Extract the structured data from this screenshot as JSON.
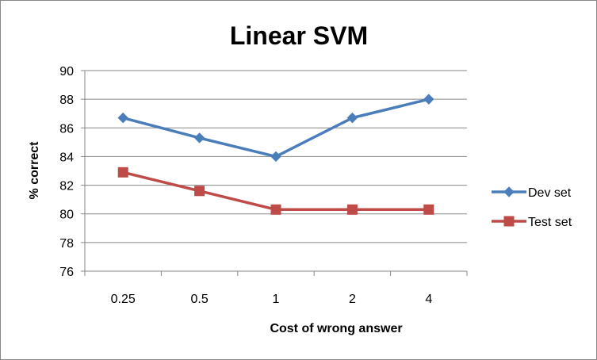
{
  "chart_data": {
    "type": "line",
    "title": "Linear SVM",
    "xlabel": "Cost of wrong answer",
    "ylabel": "% correct",
    "categories": [
      "0.25",
      "0.5",
      "1",
      "2",
      "4"
    ],
    "ylim": [
      76,
      90
    ],
    "yticks": [
      76,
      78,
      80,
      82,
      84,
      86,
      88,
      90
    ],
    "grid": true,
    "legend_position": "right",
    "series": [
      {
        "name": "Dev set",
        "values": [
          86.7,
          85.3,
          84.0,
          86.7,
          88.0
        ],
        "color": "#4a7ebb",
        "marker": "diamond"
      },
      {
        "name": "Test set",
        "values": [
          82.9,
          81.6,
          80.3,
          80.3,
          80.3
        ],
        "color": "#be4b48",
        "marker": "square"
      }
    ]
  }
}
